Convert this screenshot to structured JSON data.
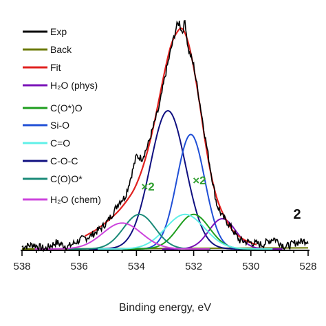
{
  "chart_data": {
    "type": "line",
    "title": "",
    "xlabel": "Binding energy, eV",
    "ylabel": "",
    "xlim": [
      538,
      528
    ],
    "x_reversed": true,
    "xticks": [
      538,
      536,
      534,
      532,
      530,
      528
    ],
    "grid": false,
    "legend_position": "top-left",
    "sample_label": "2",
    "annotations": [
      {
        "text": "×2",
        "x": 533.6,
        "y": 0.27,
        "color": "#2e9e2e"
      },
      {
        "text": "×2",
        "x": 531.8,
        "y": 0.3,
        "color": "#2e9e2e"
      }
    ],
    "legend": [
      {
        "name": "Exp",
        "color": "#000000"
      },
      {
        "name": "Back",
        "color": "#6b7a00"
      },
      {
        "name": "Fit",
        "color": "#e0211f"
      },
      {
        "name": "H₂O (phys)",
        "color": "#7a12b8"
      },
      {
        "name": "C(O*)O",
        "color": "#1e9e1e"
      },
      {
        "name": "Si-O",
        "color": "#1f4fd6"
      },
      {
        "name": "C=O",
        "color": "#5ff0e8"
      },
      {
        "name": "C-O-C",
        "color": "#101080"
      },
      {
        "name": "C(O)O*",
        "color": "#1a8a78"
      },
      {
        "name": "H₂O (chem)",
        "color": "#cc44dd"
      }
    ],
    "baseline": {
      "x": [
        538,
        528
      ],
      "y": [
        0.0,
        0.005
      ]
    },
    "components": [
      {
        "legend_index": 7,
        "center": 532.9,
        "amplitude": 0.64,
        "fwhm": 1.45
      },
      {
        "legend_index": 5,
        "center": 532.1,
        "amplitude": 0.53,
        "fwhm": 1.15
      },
      {
        "legend_index": 3,
        "center": 531.0,
        "amplitude": 0.14,
        "fwhm": 1.1
      },
      {
        "legend_index": 4,
        "center": 532.0,
        "amplitude": 0.16,
        "fwhm": 1.3
      },
      {
        "legend_index": 6,
        "center": 532.3,
        "amplitude": 0.16,
        "fwhm": 1.6
      },
      {
        "legend_index": 8,
        "center": 533.9,
        "amplitude": 0.16,
        "fwhm": 1.3
      },
      {
        "legend_index": 9,
        "center": 534.5,
        "amplitude": 0.12,
        "fwhm": 1.6
      }
    ],
    "fit": {
      "x": [
        535.8,
        535.4,
        535.0,
        534.6,
        534.2,
        534.0,
        533.8,
        533.6,
        533.4,
        533.2,
        533.0,
        532.8,
        532.6,
        532.4,
        532.2,
        532.0,
        531.8,
        531.6,
        531.4,
        531.2,
        531.0,
        530.8,
        530.6,
        530.2,
        529.8
      ],
      "y": [
        0.06,
        0.09,
        0.13,
        0.18,
        0.25,
        0.3,
        0.37,
        0.46,
        0.57,
        0.7,
        0.83,
        0.94,
        1.0,
        1.02,
        0.96,
        0.84,
        0.68,
        0.5,
        0.35,
        0.24,
        0.17,
        0.12,
        0.08,
        0.04,
        0.02
      ]
    },
    "exp": {
      "x": [
        538.0,
        537.6,
        537.2,
        536.8,
        536.4,
        536.0,
        535.6,
        535.2,
        535.0,
        534.8,
        534.6,
        534.4,
        534.2,
        534.0,
        533.8,
        533.6,
        533.4,
        533.2,
        533.0,
        532.8,
        532.6,
        532.5,
        532.4,
        532.3,
        532.2,
        532.0,
        531.8,
        531.6,
        531.4,
        531.2,
        531.0,
        530.8,
        530.6,
        530.4,
        530.0,
        529.6,
        529.2,
        528.8,
        528.4,
        528.0
      ],
      "y": [
        0.01,
        0.02,
        0.0,
        0.03,
        0.01,
        0.04,
        0.06,
        0.1,
        0.13,
        0.17,
        0.22,
        0.24,
        0.33,
        0.43,
        0.42,
        0.48,
        0.57,
        0.66,
        0.8,
        0.92,
        1.03,
        1.05,
        1.0,
        1.06,
        0.93,
        0.85,
        0.69,
        0.52,
        0.36,
        0.21,
        0.15,
        0.12,
        0.08,
        0.04,
        0.03,
        0.02,
        0.05,
        0.01,
        0.03,
        0.04
      ]
    }
  }
}
